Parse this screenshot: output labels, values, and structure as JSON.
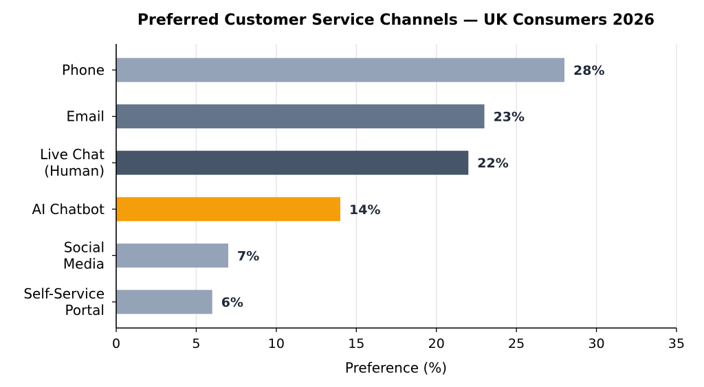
{
  "chart_data": {
    "type": "bar",
    "orientation": "horizontal",
    "title": "Preferred Customer Service Channels — UK Consumers 2026",
    "xlabel": "Preference (%)",
    "ylabel": "",
    "xlim": [
      0,
      35
    ],
    "xticks": [
      0,
      5,
      10,
      15,
      20,
      25,
      30,
      35
    ],
    "grid": "vertical",
    "legend": "none",
    "categories": [
      [
        "Phone"
      ],
      [
        "Email"
      ],
      [
        "Live Chat",
        "(Human)"
      ],
      [
        "AI Chatbot"
      ],
      [
        "Social",
        "Media"
      ],
      [
        "Self-Service",
        "Portal"
      ]
    ],
    "values": [
      28,
      23,
      22,
      14,
      7,
      6
    ],
    "data_labels": [
      "28%",
      "23%",
      "22%",
      "14%",
      "7%",
      "6%"
    ],
    "colors": [
      "#94a3b8",
      "#64748b",
      "#475569",
      "#f59e0b",
      "#94a3b8",
      "#94a3b8"
    ]
  }
}
